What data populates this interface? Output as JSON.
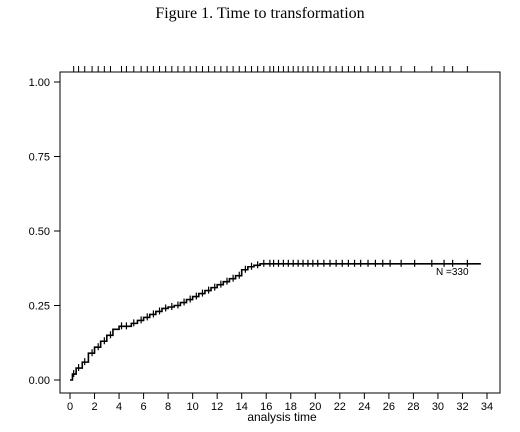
{
  "chart_data": {
    "type": "line",
    "title": "Figure 1. Time to transformation",
    "xlabel": "analysis time",
    "ylabel": "",
    "xlim": [
      0,
      34
    ],
    "ylim": [
      0,
      1
    ],
    "x_ticks": [
      "0",
      "2",
      "4",
      "6",
      "8",
      "10",
      "12",
      "14",
      "16",
      "18",
      "20",
      "22",
      "24",
      "26",
      "28",
      "30",
      "32",
      "34"
    ],
    "y_ticks": [
      "0.00",
      "0.25",
      "0.50",
      "0.75",
      "1.00"
    ],
    "grid": false,
    "annotation": "N =330",
    "series": [
      {
        "step": true,
        "x": [
          0.0,
          0.2,
          0.5,
          1.0,
          1.5,
          2.0,
          2.5,
          3.0,
          3.5,
          4.0,
          5.0,
          5.5,
          6.0,
          6.5,
          7.0,
          7.5,
          8.0,
          8.5,
          9.0,
          9.5,
          10.0,
          10.5,
          11.0,
          11.5,
          12.0,
          12.5,
          13.0,
          13.5,
          14.0,
          14.5,
          15.0,
          15.5,
          16.0,
          17.0,
          18.0,
          20.0,
          22.0,
          24.0,
          26.0,
          28.0,
          30.0,
          32.0,
          33.5
        ],
        "y": [
          0.0,
          0.02,
          0.04,
          0.06,
          0.09,
          0.11,
          0.13,
          0.15,
          0.17,
          0.18,
          0.19,
          0.2,
          0.21,
          0.22,
          0.23,
          0.24,
          0.245,
          0.25,
          0.26,
          0.27,
          0.28,
          0.29,
          0.3,
          0.31,
          0.32,
          0.33,
          0.34,
          0.35,
          0.37,
          0.38,
          0.385,
          0.39,
          0.39,
          0.39,
          0.39,
          0.39,
          0.39,
          0.39,
          0.39,
          0.39,
          0.39,
          0.39,
          0.39
        ]
      }
    ],
    "censor_x": [
      0.3,
      0.7,
      1.2,
      1.8,
      2.3,
      2.8,
      3.3,
      4.2,
      4.6,
      5.2,
      5.8,
      6.3,
      6.8,
      7.3,
      7.8,
      8.3,
      8.8,
      9.3,
      9.8,
      10.3,
      10.8,
      11.3,
      11.8,
      12.3,
      12.8,
      13.3,
      13.8,
      14.3,
      14.8,
      15.3,
      15.8,
      16.3,
      16.6,
      17.0,
      17.4,
      17.8,
      18.2,
      18.6,
      19.0,
      19.4,
      19.8,
      20.2,
      20.7,
      21.2,
      21.7,
      22.2,
      22.7,
      23.2,
      23.7,
      24.3,
      24.9,
      25.5,
      26.1,
      27.0,
      28.1,
      29.5,
      30.5,
      31.2,
      32.4
    ]
  }
}
